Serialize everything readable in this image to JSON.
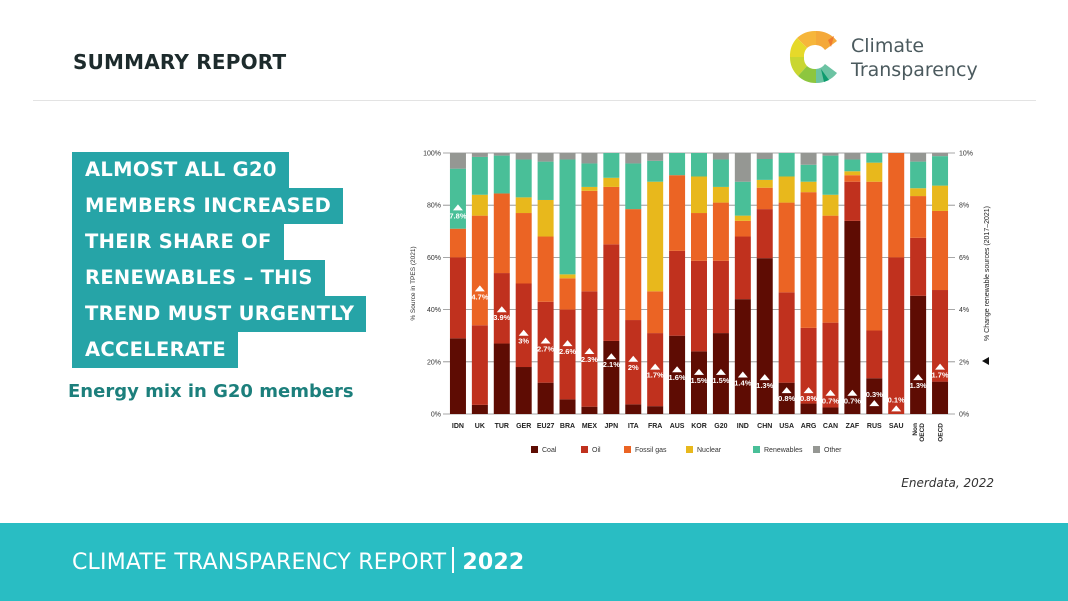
{
  "header": {
    "title": "SUMMARY REPORT",
    "logo": {
      "line1": "Climate",
      "line2": "Transparency",
      "icon": "climate-transparency-logo-icon"
    }
  },
  "headline": {
    "lines": [
      "ALMOST ALL G20",
      "MEMBERS INCREASED",
      "THEIR SHARE OF",
      "RENEWABLES – THIS",
      "TREND MUST URGENTLY",
      "ACCELERATE"
    ]
  },
  "subtitle": "Energy mix in G20 members",
  "source": "Enerdata, 2022",
  "footer": {
    "text": "CLIMATE TRANSPARENCY REPORT",
    "year": "2022"
  },
  "colors": {
    "Coal": "#5e0c03",
    "Oil": "#c0311e",
    "Fossil gas": "#eb6424",
    "Nuclear": "#e8b81c",
    "Renewables": "#49bf98",
    "Other": "#959793",
    "accent": "#26a4a7",
    "footer": "#29bdc3"
  },
  "chart_data": {
    "type": "bar",
    "stacked": true,
    "title": "Energy mix in G20 members",
    "xlabel": "",
    "ylabel": "% Source in TPES (2021)",
    "y2label": "% Change renewable sources (2017–2021)",
    "ylim": [
      0,
      100
    ],
    "y2lim": [
      0,
      10
    ],
    "yticks": [
      "0%",
      "20%",
      "40%",
      "60%",
      "80%",
      "100%"
    ],
    "y2ticks": [
      "0%",
      "2%",
      "4%",
      "6%",
      "8%",
      "10%"
    ],
    "grid": true,
    "legend_position": "bottom",
    "categories": [
      "IDN",
      "UK",
      "TUR",
      "GER",
      "EU27",
      "BRA",
      "MEX",
      "JPN",
      "ITA",
      "FRA",
      "AUS",
      "KOR",
      "G20",
      "IND",
      "CHN",
      "USA",
      "ARG",
      "CAN",
      "ZAF",
      "RUS",
      "SAU",
      "Non OECD",
      "OECD"
    ],
    "series": [
      {
        "name": "Coal",
        "values": [
          29,
          3.5,
          27,
          18,
          12,
          5.6,
          2.8,
          28,
          3.7,
          3,
          30,
          24,
          31,
          44,
          59.7,
          12,
          4,
          2.5,
          74,
          13.7,
          0,
          45.3,
          12.4
        ]
      },
      {
        "name": "Oil",
        "values": [
          31,
          30.5,
          27,
          32,
          31,
          34.4,
          44.2,
          37,
          32.3,
          28,
          32.5,
          34.7,
          27.7,
          24,
          18.8,
          34.6,
          29,
          32.5,
          15,
          18.3,
          60,
          22.2,
          35.1
        ]
      },
      {
        "name": "Fossil gas",
        "values": [
          11,
          42,
          30.5,
          27,
          25,
          12,
          38.5,
          22,
          42.5,
          16,
          29,
          18.3,
          22.3,
          6,
          8.2,
          34.4,
          52,
          41,
          2.5,
          57,
          40,
          16,
          30.3
        ]
      },
      {
        "name": "Nuclear",
        "values": [
          0,
          8,
          0,
          6,
          14,
          1.5,
          1.5,
          3.5,
          0,
          42,
          0,
          14,
          6,
          2,
          3,
          10,
          4,
          8,
          1.5,
          7.3,
          0,
          3,
          9.7
        ]
      },
      {
        "name": "Renewables",
        "values": [
          23,
          14.5,
          14.5,
          14.5,
          14.7,
          44,
          9,
          9.5,
          17.5,
          8,
          8.5,
          9,
          10.5,
          13,
          8,
          9,
          6.5,
          15,
          4.5,
          3.7,
          0,
          10.2,
          11.3
        ]
      },
      {
        "name": "Other",
        "values": [
          6,
          1.5,
          1,
          2.5,
          3.3,
          2.5,
          4,
          0,
          4,
          3,
          0,
          0,
          2.5,
          11,
          2.3,
          0,
          4.5,
          1,
          2.5,
          0,
          0,
          3.3,
          1.2
        ]
      }
    ],
    "renewable_change": {
      "name": "% Change renewable sources (2017–2021)",
      "axis": "right",
      "values": [
        7.8,
        4.7,
        3.9,
        3,
        2.7,
        2.6,
        2.3,
        2.1,
        2,
        1.7,
        1.6,
        1.5,
        1.5,
        1.4,
        1.3,
        0.8,
        0.8,
        0.7,
        0.7,
        0.3,
        0.1,
        1.3,
        1.7
      ],
      "labels": [
        "7.8%",
        "4.7%",
        "3.9%",
        "3%",
        "2.7%",
        "2.6%",
        "2.3%",
        "2.1%",
        "2%",
        "1.7%",
        "1.6%",
        "1.5%",
        "1.5%",
        "1.4%",
        "1.3%",
        "0.8%",
        "0.8%",
        "0.7%",
        "0.7%",
        "0.3%",
        "0.1%",
        "1.3%",
        "1.7%"
      ]
    },
    "legend": [
      "Coal",
      "Oil",
      "Fossil gas",
      "Nuclear",
      "Renewables",
      "Other"
    ]
  }
}
